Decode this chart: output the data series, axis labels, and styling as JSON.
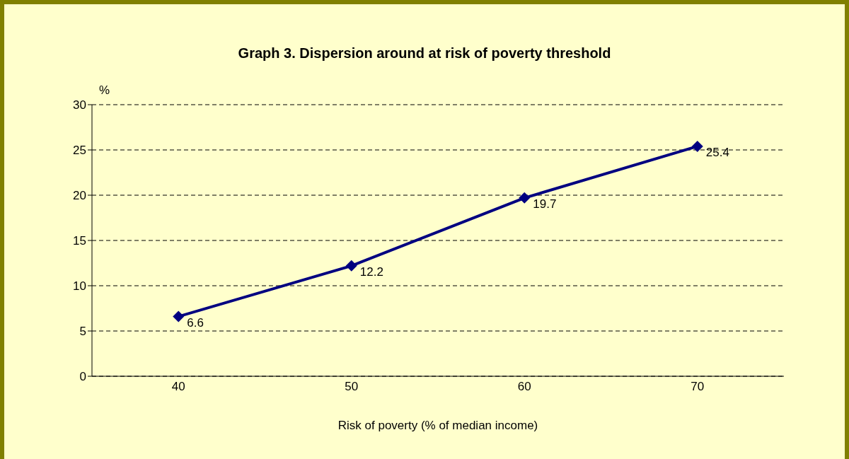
{
  "chart_data": {
    "type": "line",
    "title": "Graph 3. Dispersion around at risk of poverty threshold",
    "xlabel": "Risk of poverty (% of median income)",
    "ylabel": "%",
    "categories": [
      "40",
      "50",
      "60",
      "70"
    ],
    "series": [
      {
        "color": "#000080",
        "values": [
          6.6,
          12.2,
          19.7,
          25.4
        ]
      }
    ],
    "ylim": [
      0,
      30
    ],
    "yticks": [
      0,
      5,
      10,
      15,
      20,
      25,
      30
    ],
    "grid": "y",
    "marker": "diamond",
    "line_style": "solid",
    "data_labels": true
  }
}
